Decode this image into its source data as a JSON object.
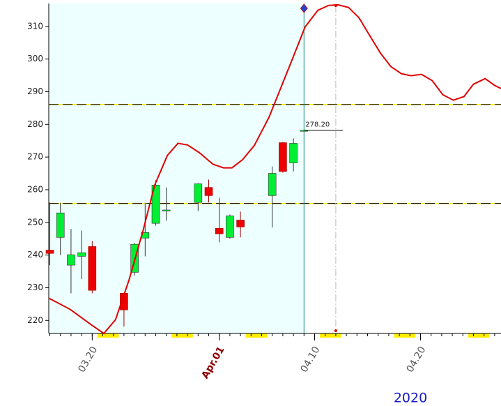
{
  "chart_data": {
    "type": "candlestick",
    "x": [
      0,
      1,
      2,
      3,
      4,
      7,
      8,
      9,
      10,
      11,
      14,
      15,
      16,
      17,
      18,
      21,
      22,
      23,
      24
    ],
    "open": [
      241.5,
      245.4,
      236.9,
      239.6,
      242.6,
      228.3,
      234.7,
      245.2,
      249.7,
      253.6,
      256.1,
      260.7,
      248.2,
      245.4,
      250.7,
      258.2,
      274.4,
      268.2,
      278.0
    ],
    "high": [
      256.1,
      256.0,
      248.0,
      247.5,
      244.3,
      228.5,
      243.7,
      256.0,
      262.9,
      260.7,
      262.0,
      263.1,
      257.5,
      252.4,
      253.3,
      267.1,
      274.6,
      275.7,
      278.4
    ],
    "low": [
      236.9,
      240.0,
      228.3,
      232.6,
      228.3,
      218.1,
      233.7,
      239.6,
      249.0,
      250.5,
      253.5,
      256.1,
      243.9,
      245.0,
      245.4,
      248.4,
      265.2,
      265.6,
      278.0
    ],
    "close": [
      240.5,
      252.9,
      240.1,
      240.7,
      229.2,
      223.2,
      243.3,
      246.9,
      261.4,
      253.8,
      261.8,
      258.2,
      246.5,
      252.0,
      248.6,
      265.0,
      265.6,
      274.2,
      278.2
    ],
    "up_color": "#00ee33",
    "down_color": "#ee0000",
    "last_label": "278.20",
    "forecast": {
      "color": "#e00000",
      "x": [
        -0.1,
        1.9,
        3.9,
        5.1,
        6.2,
        7.5,
        8.8,
        9.9,
        11.1,
        12.1,
        13.0,
        14.1,
        15.4,
        16.4,
        17.2,
        18.2,
        19.3,
        20.7,
        22.0,
        23.0,
        24.1,
        25.3,
        26.3,
        27.2,
        28.2,
        29.2,
        30.2,
        31.2,
        32.2,
        33.2,
        34.1,
        35.1,
        36.1,
        37.1,
        38.1,
        39.1,
        40.0,
        41.1,
        42.0,
        42.6
      ],
      "values": [
        226.8,
        223.4,
        218.7,
        216.0,
        220.2,
        232.6,
        247.5,
        261.4,
        270.5,
        274.2,
        273.7,
        271.4,
        267.8,
        266.7,
        266.7,
        269.2,
        273.5,
        282.2,
        292.7,
        300.8,
        309.8,
        314.9,
        316.4,
        316.6,
        315.8,
        312.6,
        307.2,
        301.9,
        297.7,
        295.5,
        294.9,
        295.3,
        293.4,
        289.1,
        287.4,
        288.5,
        292.3,
        294.0,
        291.9,
        291.0
      ]
    },
    "hlines": [
      286.1,
      255.8
    ],
    "history_end": 24,
    "peak": 27,
    "weekends": [
      [
        5,
        6
      ],
      [
        12,
        13
      ],
      [
        19,
        20
      ],
      [
        26,
        27
      ],
      [
        33,
        34
      ],
      [
        40,
        41
      ]
    ],
    "xlim": [
      -0.1,
      42.6
    ],
    "ylim": [
      216,
      317
    ],
    "yticks": [
      220,
      230,
      240,
      250,
      260,
      270,
      280,
      290,
      300,
      310
    ],
    "xticks": [
      {
        "value": 4,
        "label": "03.20"
      },
      {
        "value": 16,
        "label": "Apr.01",
        "color": "#8b0000"
      },
      {
        "value": 25,
        "label": "04.10"
      },
      {
        "value": 35,
        "label": "04.20"
      }
    ],
    "year": "2020"
  }
}
